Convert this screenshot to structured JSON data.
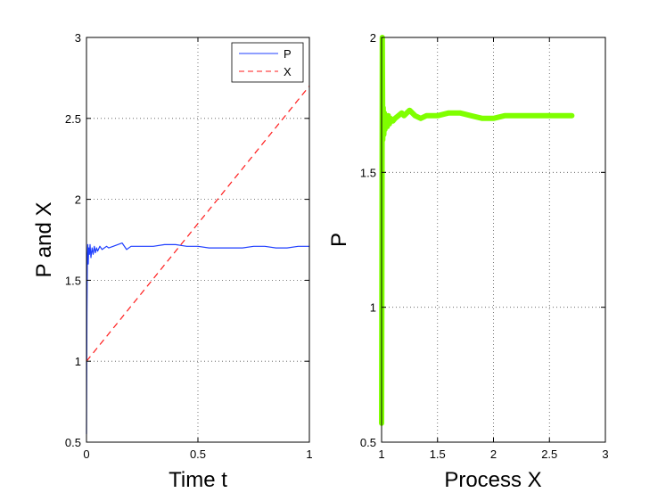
{
  "chart_data": [
    {
      "type": "line",
      "title": "",
      "xlabel": "Time  t",
      "ylabel": "P and X",
      "xlim": [
        0,
        1
      ],
      "ylim": [
        0.5,
        3
      ],
      "xticks": [
        "0",
        "0.5",
        "1"
      ],
      "yticks": [
        "0.5",
        "1",
        "1.5",
        "2",
        "2.5",
        "3"
      ],
      "xtick_values": [
        0,
        0.5,
        1
      ],
      "ytick_values": [
        0.5,
        1,
        1.5,
        2,
        2.5,
        3
      ],
      "grid": true,
      "legend": "top-right",
      "series": [
        {
          "name": "P",
          "color": "#1f3fff",
          "style": "solid",
          "x": [
            0,
            0.002,
            0.004,
            0.006,
            0.008,
            0.01,
            0.013,
            0.016,
            0.02,
            0.025,
            0.03,
            0.035,
            0.04,
            0.045,
            0.05,
            0.06,
            0.07,
            0.08,
            0.09,
            0.1,
            0.12,
            0.14,
            0.16,
            0.18,
            0.2,
            0.25,
            0.3,
            0.35,
            0.4,
            0.45,
            0.5,
            0.55,
            0.6,
            0.65,
            0.7,
            0.75,
            0.8,
            0.85,
            0.9,
            0.95,
            1.0
          ],
          "y": [
            0.55,
            1.3,
            1.65,
            1.72,
            1.6,
            1.7,
            1.66,
            1.72,
            1.64,
            1.7,
            1.66,
            1.71,
            1.67,
            1.7,
            1.68,
            1.71,
            1.69,
            1.7,
            1.71,
            1.7,
            1.71,
            1.72,
            1.73,
            1.69,
            1.71,
            1.71,
            1.71,
            1.72,
            1.72,
            1.71,
            1.71,
            1.7,
            1.7,
            1.7,
            1.7,
            1.71,
            1.71,
            1.7,
            1.7,
            1.71,
            1.71
          ]
        },
        {
          "name": "X",
          "color": "#ff1a1a",
          "style": "dashed",
          "x": [
            0,
            1
          ],
          "y": [
            1.0,
            2.7
          ]
        }
      ]
    },
    {
      "type": "scatter",
      "title": "",
      "xlabel": "Process  X",
      "ylabel": "P",
      "xlim": [
        1,
        3
      ],
      "ylim": [
        0.5,
        2
      ],
      "xticks": [
        "1",
        "1.5",
        "2",
        "2.5",
        "3"
      ],
      "yticks": [
        "0.5",
        "1",
        "1.5",
        "2"
      ],
      "xtick_values": [
        1,
        1.5,
        2,
        2.5,
        3
      ],
      "ytick_values": [
        0.5,
        1,
        1.5,
        2
      ],
      "grid": true,
      "series": [
        {
          "color": "#7fff00",
          "x": [
            1.0,
            1.003,
            1.006,
            1.01,
            1.014,
            1.02,
            1.025,
            1.03,
            1.04,
            1.05,
            1.06,
            1.07,
            1.08,
            1.1,
            1.12,
            1.15,
            1.18,
            1.2,
            1.25,
            1.3,
            1.35,
            1.4,
            1.5,
            1.6,
            1.7,
            1.8,
            1.9,
            2.0,
            2.1,
            2.2,
            2.3,
            2.4,
            2.5,
            2.6,
            2.7
          ],
          "y": [
            0.57,
            1.25,
            2.0,
            1.62,
            1.74,
            1.64,
            1.72,
            1.66,
            1.7,
            1.67,
            1.71,
            1.68,
            1.7,
            1.69,
            1.7,
            1.71,
            1.72,
            1.71,
            1.73,
            1.71,
            1.7,
            1.71,
            1.71,
            1.72,
            1.72,
            1.71,
            1.7,
            1.7,
            1.71,
            1.71,
            1.71,
            1.71,
            1.71,
            1.71,
            1.71
          ]
        }
      ]
    }
  ]
}
